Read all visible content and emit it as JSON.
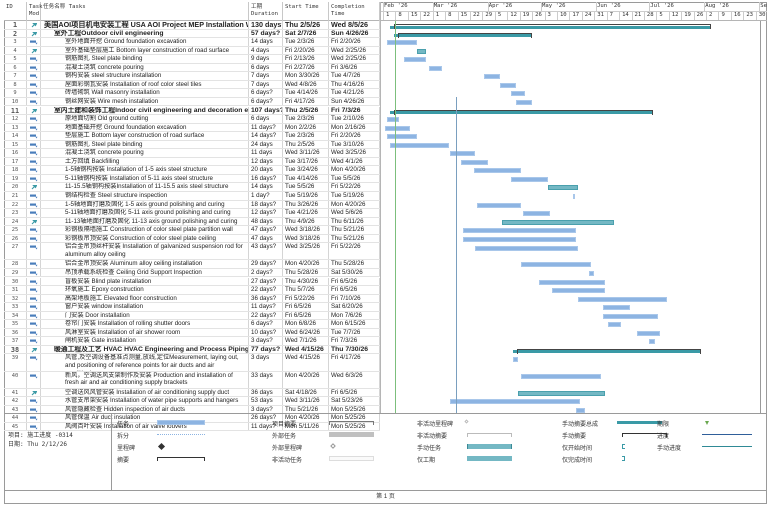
{
  "columns": {
    "id": "ID",
    "mode": "Task Mod",
    "name": "任务名称 Tasks",
    "duration": "工期 Duration",
    "start": "Start Time",
    "end": "Completion Time"
  },
  "timescale": {
    "months": [
      "Feb '26",
      "Mar '26",
      "Apr '26",
      "May '26",
      "Jun '26",
      "Jul '26",
      "Aug '26",
      "Sep"
    ],
    "days": [
      "1",
      "8",
      "15",
      "22",
      "1",
      "8",
      "15",
      "22",
      "29",
      "5",
      "12",
      "19",
      "26",
      "3",
      "10",
      "17",
      "24",
      "31",
      "7",
      "14",
      "21",
      "28",
      "5",
      "12",
      "19",
      "26",
      "2",
      "9",
      "16",
      "23",
      "30"
    ]
  },
  "tasks": [
    {
      "id": "1",
      "mode": "manual",
      "level": 0,
      "type": "top",
      "name": "美国AOI项目机电安装工程 USA AOI Project MEP Installation Work",
      "duration": "130 days?",
      "start": "Thu 2/5/26",
      "end": "Wed 8/5/26",
      "s": 4,
      "e": 185
    },
    {
      "id": "2",
      "mode": "manual",
      "level": 1,
      "type": "summary",
      "name": "室外工程Outdoor civil engineering",
      "duration": "57 days?",
      "start": "Sat 2/7/26",
      "end": "Sun 4/26/26",
      "s": 6,
      "e": 84
    },
    {
      "id": "3",
      "mode": "auto",
      "level": 2,
      "type": "task",
      "name": "室外地面开挖  Ground foundation excavation",
      "duration": "14 days",
      "start": "Tue 2/3/26",
      "end": "Fri 2/20/26",
      "s": 2,
      "e": 19
    },
    {
      "id": "4",
      "mode": "manual",
      "level": 2,
      "type": "manual",
      "name": "室外基础垫层施工  Bottom layer construction of road surface",
      "duration": "4 days",
      "start": "Fri 2/20/26",
      "end": "Wed 2/25/26",
      "s": 19,
      "e": 24
    },
    {
      "id": "5",
      "mode": "auto",
      "level": 2,
      "type": "task",
      "name": "钢筋图扎 Steel plate binding",
      "duration": "9 days",
      "start": "Fri 2/13/26",
      "end": "Wed 2/25/26",
      "s": 12,
      "e": 24
    },
    {
      "id": "6",
      "mode": "auto",
      "level": 2,
      "type": "task",
      "name": "混凝土浇筑 concrete pouring",
      "duration": "6 days",
      "start": "Fri 2/27/26",
      "end": "Fri 3/6/26",
      "s": 26,
      "e": 33
    },
    {
      "id": "7",
      "mode": "auto",
      "level": 2,
      "type": "task",
      "name": "钢构安装  steel structure installation",
      "duration": "7 days",
      "start": "Mon 3/30/26",
      "end": "Tue 4/7/26",
      "s": 57,
      "e": 66
    },
    {
      "id": "8",
      "mode": "auto",
      "level": 2,
      "type": "task",
      "name": "屋面彩钢瓦安装  Installation of roof color steel tiles",
      "duration": "7 days",
      "start": "Wed 4/8/26",
      "end": "Thu 4/16/26",
      "s": 66,
      "e": 75
    },
    {
      "id": "9",
      "mode": "auto",
      "level": 2,
      "type": "task",
      "name": "砖墙砌筑  Wall masonry installation",
      "duration": "6 days?",
      "start": "Tue 4/14/26",
      "end": "Tue 4/21/26",
      "s": 72,
      "e": 80
    },
    {
      "id": "10",
      "mode": "auto",
      "level": 2,
      "type": "task",
      "name": "钢丝网安装   Wire mesh installation",
      "duration": "6 days?",
      "start": "Fri 4/17/26",
      "end": "Sun 4/26/26",
      "s": 75,
      "e": 84
    },
    {
      "id": "11",
      "mode": "manual",
      "level": 1,
      "type": "summary",
      "name": "室内土建和装饰工程Indoor civil engineering and decoration engineering",
      "duration": "107 days?",
      "start": "Thu 2/5/26",
      "end": "Fri 7/3/26",
      "s": 4,
      "e": 152
    },
    {
      "id": "12",
      "mode": "auto",
      "level": 2,
      "type": "task",
      "name": "原地面切割 Old ground cutting",
      "duration": "6 days",
      "start": "Tue 2/3/26",
      "end": "Tue 2/10/26",
      "s": 2,
      "e": 9
    },
    {
      "id": "13",
      "mode": "auto",
      "level": 2,
      "type": "task",
      "name": "地面基础开挖  Ground foundation excavation",
      "duration": "11 days?",
      "start": "Mon 2/2/26",
      "end": "Mon 2/16/26",
      "s": 1,
      "e": 15
    },
    {
      "id": "14",
      "mode": "auto",
      "level": 2,
      "type": "task",
      "name": "垫层施工 Bottom layer construction of road surface",
      "duration": "14 days?",
      "start": "Tue 2/3/26",
      "end": "Fri 2/20/26",
      "s": 2,
      "e": 19
    },
    {
      "id": "15",
      "mode": "auto",
      "level": 2,
      "type": "task",
      "name": "钢筋图扎  Steel plate binding",
      "duration": "24 days",
      "start": "Thu 2/5/26",
      "end": "Tue 3/10/26",
      "s": 4,
      "e": 37
    },
    {
      "id": "16",
      "mode": "auto",
      "level": 2,
      "type": "task",
      "name": "混凝土浇筑   concrete pouring",
      "duration": "11 days",
      "start": "Wed 3/11/26",
      "end": "Wed 3/25/26",
      "s": 38,
      "e": 52
    },
    {
      "id": "17",
      "mode": "auto",
      "level": 2,
      "type": "task",
      "name": "土方回填  Backfilling",
      "duration": "12 days",
      "start": "Tue 3/17/26",
      "end": "Wed 4/1/26",
      "s": 44,
      "e": 59
    },
    {
      "id": "18",
      "mode": "auto",
      "level": 2,
      "type": "task",
      "name": "1-5轴钢构按装  Installation of 1-5 axis steel structure",
      "duration": "20 days",
      "start": "Tue 3/24/26",
      "end": "Mon 4/20/26",
      "s": 51,
      "e": 78
    },
    {
      "id": "19",
      "mode": "auto",
      "level": 2,
      "type": "task",
      "name": "5-11轴钢构按装 Installation of 5-11 axis steel structure",
      "duration": "16 days?",
      "start": "Tue 4/14/26",
      "end": "Tue 5/5/26",
      "s": 72,
      "e": 93
    },
    {
      "id": "20",
      "mode": "manual",
      "level": 2,
      "type": "manual",
      "name": "11-15.5轴钢构按装Installation of 11-15.5 axis steel structure",
      "duration": "14 days",
      "start": "Tue 5/5/26",
      "end": "Fri 5/22/26",
      "s": 93,
      "e": 110
    },
    {
      "id": "21",
      "mode": "auto",
      "level": 2,
      "type": "task",
      "name": "钢结构检查  Steel structure inspection",
      "duration": "1 day?",
      "start": "Tue 5/19/26",
      "end": "Tue 5/19/26",
      "s": 107,
      "e": 108
    },
    {
      "id": "22",
      "mode": "auto",
      "level": 2,
      "type": "task",
      "name": "1-5轴地面打磨及固化  1-5 axis ground polishing and curing",
      "duration": "18 days?",
      "start": "Thu 3/26/26",
      "end": "Mon 4/20/26",
      "s": 53,
      "e": 78
    },
    {
      "id": "23",
      "mode": "auto",
      "level": 2,
      "type": "task",
      "name": "5-11轴地面打磨及固化  5-11 axis ground polishing and curing",
      "duration": "12 days?",
      "start": "Tue 4/21/26",
      "end": "Wed 5/6/26",
      "s": 79,
      "e": 94
    },
    {
      "id": "24",
      "mode": "manual",
      "level": 2,
      "type": "manual",
      "name": "11-13轴地面打磨及固化  11-13 axis ground polishing and curing",
      "duration": "48 days",
      "start": "Thu 4/9/26",
      "end": "Thu 6/11/26",
      "s": 67,
      "e": 130
    },
    {
      "id": "25",
      "mode": "auto",
      "level": 2,
      "type": "task",
      "name": "彩钢板隔墙施工  Construction of color steel plate partition wall",
      "duration": "47 days?",
      "start": "Wed 3/18/26",
      "end": "Thu 5/21/26",
      "s": 45,
      "e": 109
    },
    {
      "id": "26",
      "mode": "auto",
      "level": 2,
      "type": "task",
      "name": "彩钢板吊顶安装  Construction of color steel plate ceiling",
      "duration": "47 days",
      "start": "Wed 3/18/26",
      "end": "Thu 5/21/26",
      "s": 45,
      "e": 109
    },
    {
      "id": "27",
      "mode": "auto",
      "level": 2,
      "type": "task",
      "tall": true,
      "name": "铝合金吊顶丝杆安装 Installation of galvanized suspension rod for aluminum alloy ceiling",
      "duration": "43 days?",
      "start": "Wed 3/25/26",
      "end": "Fri 5/22/26",
      "s": 52,
      "e": 110
    },
    {
      "id": "28",
      "mode": "auto",
      "level": 2,
      "type": "task",
      "name": "铝合金吊顶安装 Aluminum alloy ceiling installation",
      "duration": "29 days?",
      "start": "Mon 4/20/26",
      "end": "Thu 5/28/26",
      "s": 78,
      "e": 117
    },
    {
      "id": "29",
      "mode": "auto",
      "level": 2,
      "type": "task",
      "name": "吊顶承载系统检查  Ceiling Grid Support Inspection",
      "duration": "2 days?",
      "start": "Thu 5/28/26",
      "end": "Sat 5/30/26",
      "s": 116,
      "e": 119
    },
    {
      "id": "30",
      "mode": "auto",
      "level": 2,
      "type": "task",
      "name": "盲板安装  Blind plate installation",
      "duration": "27 days?",
      "start": "Thu 4/30/26",
      "end": "Fri 6/5/26",
      "s": 88,
      "e": 125
    },
    {
      "id": "31",
      "mode": "auto",
      "level": 2,
      "type": "task",
      "name": "环氧施工 Epoxy construction",
      "duration": "22 days?",
      "start": "Thu 5/7/26",
      "end": "Fri 6/5/26",
      "s": 95,
      "e": 125
    },
    {
      "id": "32",
      "mode": "auto",
      "level": 2,
      "type": "task",
      "name": "高架地板施工 Elevated floor construction",
      "duration": "36 days?",
      "start": "Fri 5/22/26",
      "end": "Fri 7/10/26",
      "s": 110,
      "e": 160
    },
    {
      "id": "33",
      "mode": "auto",
      "level": 2,
      "type": "task",
      "name": "窗户安装 window installation",
      "duration": "11 days?",
      "start": "Fri 6/5/26",
      "end": "Sat 6/20/26",
      "s": 124,
      "e": 139
    },
    {
      "id": "34",
      "mode": "auto",
      "level": 2,
      "type": "task",
      "name": "门安装 Door installation",
      "duration": "22 days?",
      "start": "Fri 6/5/26",
      "end": "Mon 7/6/26",
      "s": 124,
      "e": 155
    },
    {
      "id": "35",
      "mode": "auto",
      "level": 2,
      "type": "task",
      "name": "卷帘门安装 Installation of rolling shutter doors",
      "duration": "6 days?",
      "start": "Mon 6/8/26",
      "end": "Mon 6/15/26",
      "s": 127,
      "e": 134
    },
    {
      "id": "36",
      "mode": "auto",
      "level": 2,
      "type": "task",
      "name": "风淋室安装 Installation of air shower room",
      "duration": "10 days?",
      "start": "Wed 6/24/26",
      "end": "Tue 7/7/26",
      "s": 143,
      "e": 156
    },
    {
      "id": "37",
      "mode": "auto",
      "level": 2,
      "type": "task",
      "name": "闸机安装  Gate installation",
      "duration": "3 days?",
      "start": "Wed 7/1/26",
      "end": "Fri 7/3/26",
      "s": 150,
      "e": 153
    },
    {
      "id": "38",
      "mode": "manual",
      "level": 1,
      "type": "summary",
      "name": "暖通工程及工艺 HVAC HVAC Engineering and Process Piping",
      "duration": "77 days?",
      "start": "Wed 4/15/26",
      "end": "Thu 7/30/26",
      "s": 73,
      "e": 179
    },
    {
      "id": "39",
      "mode": "auto",
      "level": 2,
      "type": "task",
      "tall": true,
      "name": "风管,及空调设备基准点测量,放线,定位Measurement, laying out, and positioning of reference points for air ducts and air conditioning",
      "duration": "3 days",
      "start": "Wed 4/15/26",
      "end": "Fri 4/17/26",
      "s": 73,
      "e": 76
    },
    {
      "id": "40",
      "mode": "auto",
      "level": 2,
      "type": "task",
      "tall": true,
      "name": "新风，空调送风支架制作及安装  Production and installation of fresh air and air conditioning supply brackets",
      "duration": "33 days",
      "start": "Mon 4/20/26",
      "end": "Wed 6/3/26",
      "s": 78,
      "e": 123
    },
    {
      "id": "41",
      "mode": "manual",
      "level": 2,
      "type": "manual",
      "name": "空调送风风管安装  Installation of air conditioning supply duct",
      "duration": "36 days",
      "start": "Sat 4/18/26",
      "end": "Fri 6/5/26",
      "s": 76,
      "e": 125
    },
    {
      "id": "42",
      "mode": "auto",
      "level": 2,
      "type": "task",
      "name": "水管支吊架安装  Installation of water pipe supports and hangers",
      "duration": "53 days",
      "start": "Wed 3/11/26",
      "end": "Sat 5/23/26",
      "s": 38,
      "e": 111
    },
    {
      "id": "43",
      "mode": "auto",
      "level": 2,
      "type": "task",
      "name": "风管隐藏检查  Hidden inspection of air ducts",
      "duration": "3 days?",
      "start": "Thu 5/21/26",
      "end": "Mon 5/25/26",
      "s": 109,
      "e": 114
    },
    {
      "id": "44",
      "mode": "auto",
      "level": 2,
      "type": "task",
      "name": "风管保温  Air duct insulation",
      "duration": "26 days?",
      "start": "Mon 4/20/26",
      "end": "Mon 5/25/26",
      "s": 78,
      "e": 114
    },
    {
      "id": "45",
      "mode": "auto",
      "level": 2,
      "type": "task",
      "name": "风阀百叶安装  Installation of air valve louvers",
      "duration": "11 days?",
      "start": "Mon 5/11/26",
      "end": "Mon 5/25/26",
      "s": 99,
      "e": 114
    }
  ],
  "markers": {
    "project_start_day": 7,
    "status_date_day": 41
  },
  "legend": {
    "project_label": "项目: 施工进度 -0314",
    "date_label": "日期: Thu 2/12/26",
    "items": [
      {
        "label": "任务",
        "sym": "task"
      },
      {
        "label": "拆分",
        "sym": "split"
      },
      {
        "label": "里程碑",
        "sym": "milestone"
      },
      {
        "label": "摘要",
        "sym": "summary"
      },
      {
        "label": "项目摘要",
        "sym": "projsummary"
      },
      {
        "label": "外部任务",
        "sym": "external"
      },
      {
        "label": "外部里程碑",
        "sym": "extmilestone"
      },
      {
        "label": "非活动任务",
        "sym": "inactive"
      },
      {
        "label": "非活动里程碑",
        "sym": "inactmilestone"
      },
      {
        "label": "非活动摘要",
        "sym": "inactsummary"
      },
      {
        "label": "手动任务",
        "sym": "manual"
      },
      {
        "label": "仅工期",
        "sym": "duronly"
      },
      {
        "label": "手动摘要总成",
        "sym": "manualrollup"
      },
      {
        "label": "手动摘要",
        "sym": "manualsummary"
      },
      {
        "label": "仅开始时间",
        "sym": "startonly"
      },
      {
        "label": "仅完成时间",
        "sym": "finishonly"
      },
      {
        "label": "期限",
        "sym": "deadline"
      },
      {
        "label": "进度",
        "sym": "progress"
      },
      {
        "label": "手动进度",
        "sym": "manualprogress"
      }
    ]
  },
  "footer": {
    "page": "第 1 页"
  },
  "colors": {
    "task": "#8db4e2",
    "manual": "#74b8c4",
    "summary": "#3a9aa6",
    "bracket": "#444444",
    "startline": "#7cbf7c",
    "statusline": "#7a9fbf",
    "deadline": "#6aa84f"
  }
}
